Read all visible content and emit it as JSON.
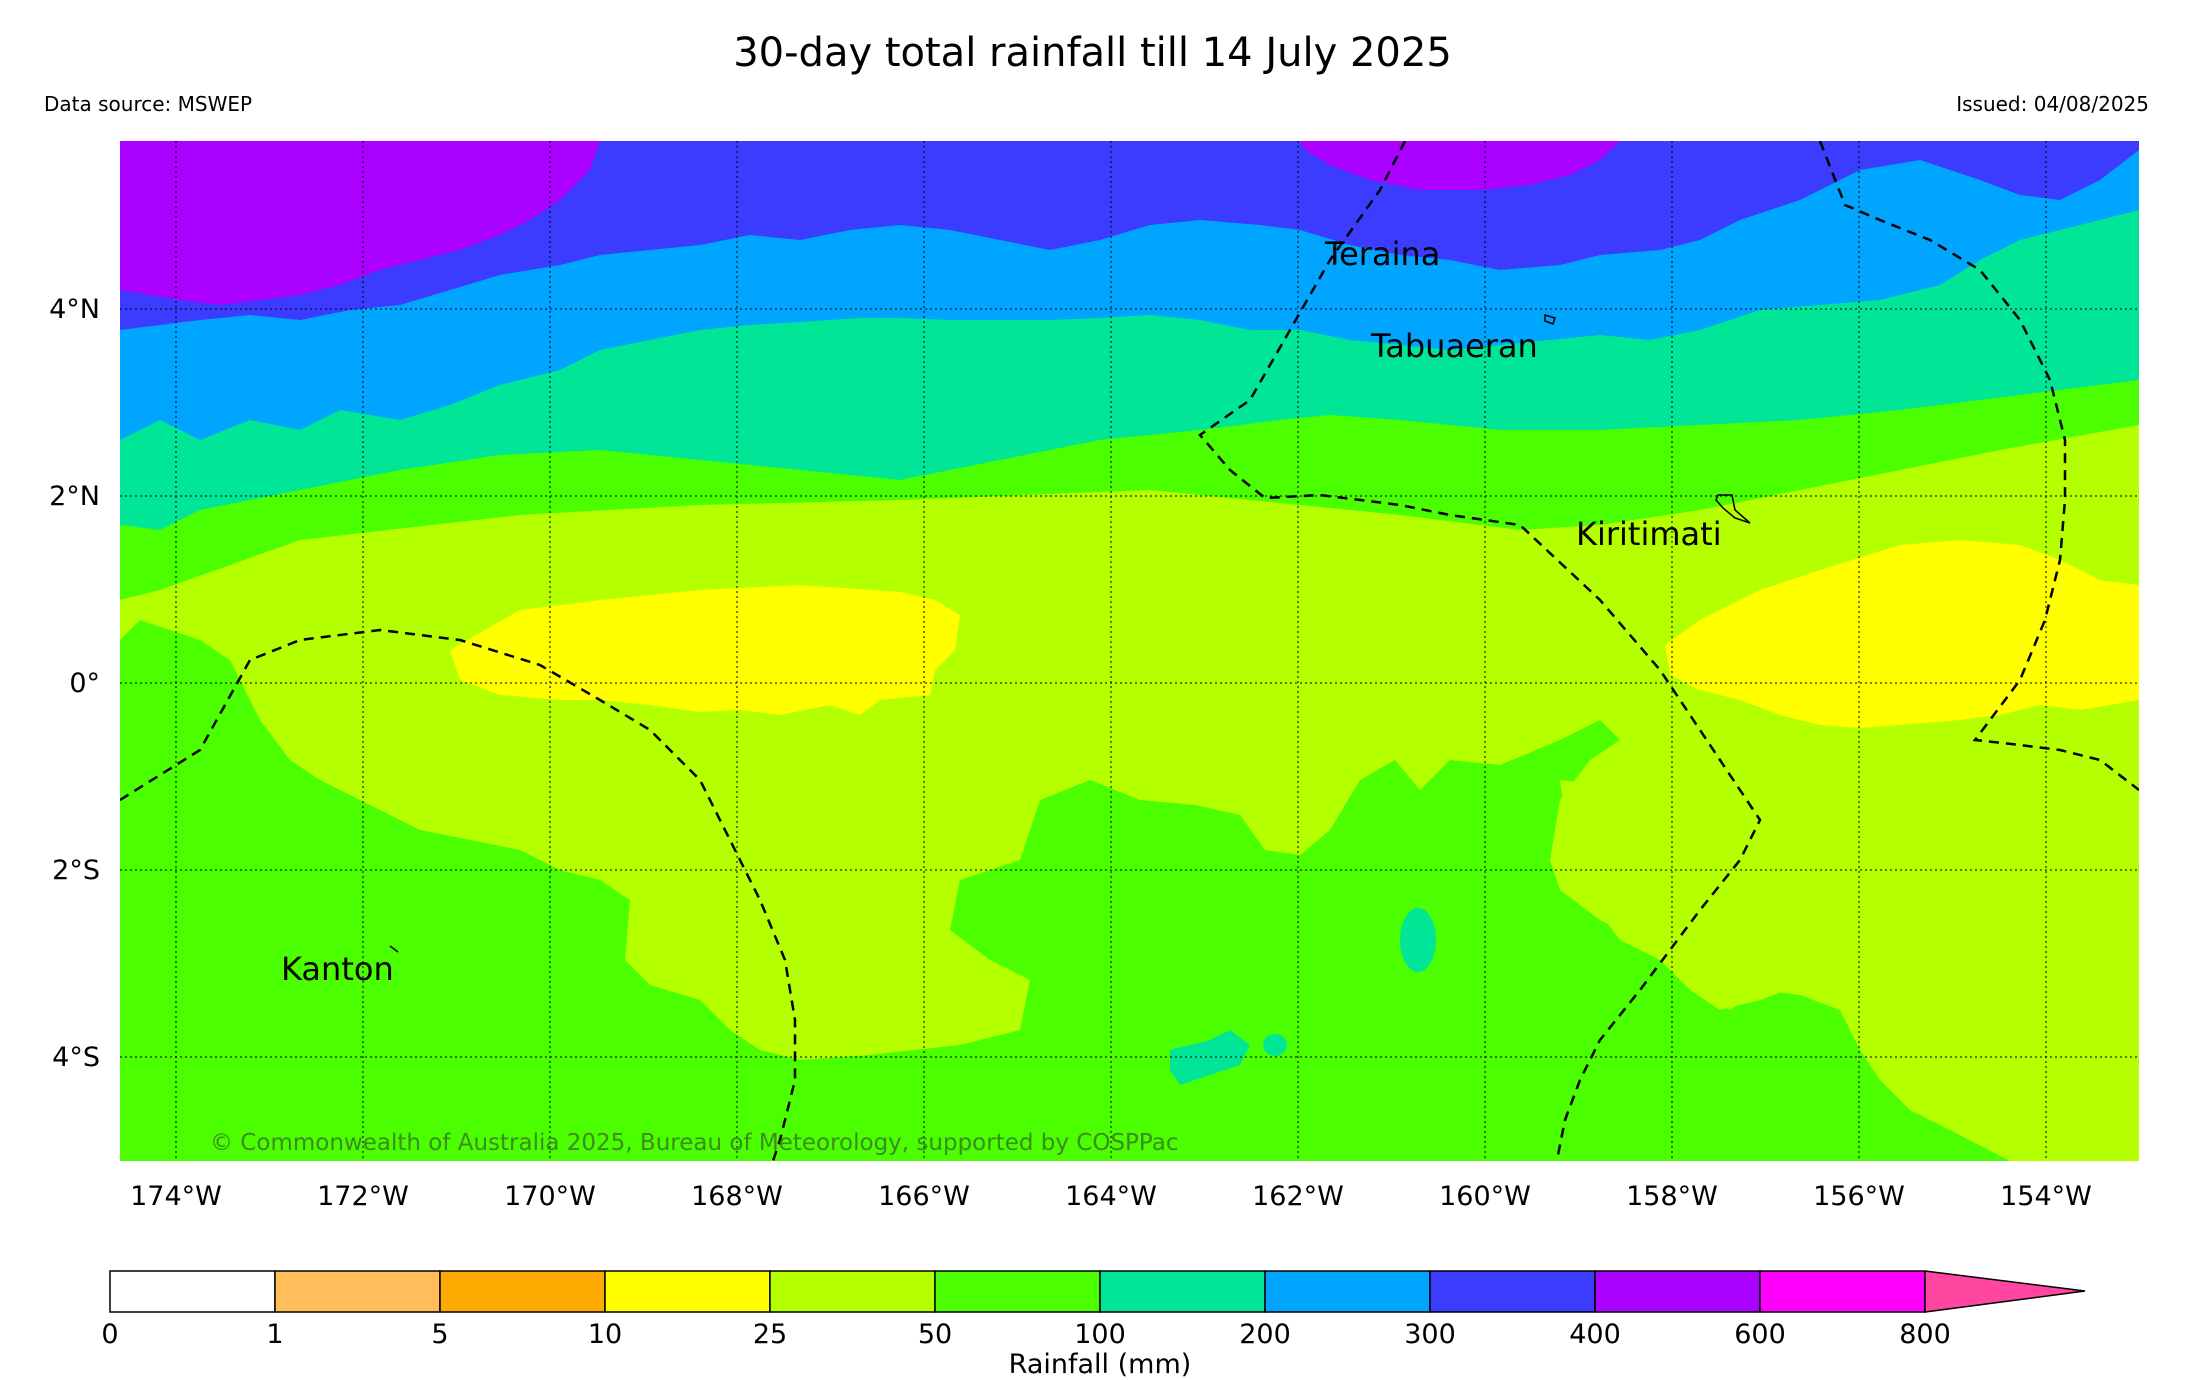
{
  "header": {
    "title": "30-day total rainfall till 14 July 2025",
    "data_source": "Data source: MSWEP",
    "issued": "Issued: 04/08/2025"
  },
  "map": {
    "places": {
      "teraina": "Teraina",
      "tabuaeran": "Tabuaeran",
      "kiritimati": "Kiritimati",
      "kanton": "Kanton"
    },
    "copyright": "© Commonwealth of Australia 2025, Bureau of Meteorology, supported by COSPPac",
    "lat_labels": [
      "4°N",
      "2°N",
      "0°",
      "2°S",
      "4°S"
    ],
    "lon_labels": [
      "174°W",
      "172°W",
      "170°W",
      "168°W",
      "166°W",
      "164°W",
      "162°W",
      "160°W",
      "158°W",
      "156°W",
      "154°W"
    ],
    "colors": {
      "r0_1": "#ffffff",
      "r1_5": "#ffbe5a",
      "r5_10": "#ffaa00",
      "r10_25": "#ffff00",
      "r25_50": "#b4ff00",
      "r50_100": "#4bff00",
      "r100_200": "#00e696",
      "r200_300": "#00a5ff",
      "r300_400": "#3c3cff",
      "r400_600": "#aa00ff",
      "r600_800": "#ff00ff",
      "r800_plus": "#ff46a0"
    }
  },
  "colorbar": {
    "ticks": [
      "0",
      "1",
      "5",
      "10",
      "25",
      "50",
      "100",
      "200",
      "300",
      "400",
      "600",
      "800"
    ],
    "label": "Rainfall (mm)"
  }
}
